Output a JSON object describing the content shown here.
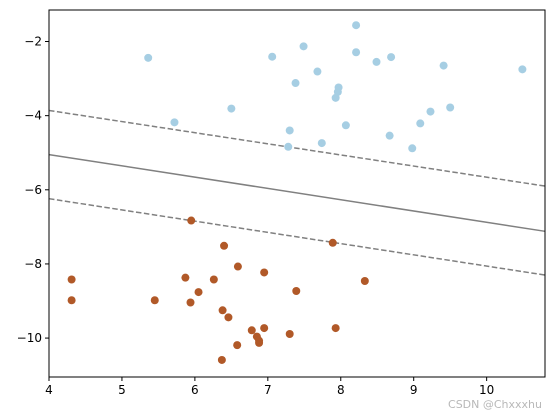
{
  "chart_data": {
    "type": "scatter",
    "title": "",
    "xlabel": "",
    "ylabel": "",
    "xlim": [
      4.0,
      10.8
    ],
    "ylim": [
      -11.05,
      -1.15
    ],
    "x_ticks": [
      4,
      5,
      6,
      7,
      8,
      9,
      10
    ],
    "y_ticks": [
      -2,
      -4,
      -6,
      -8,
      -10
    ],
    "grid": false,
    "legend": "none",
    "series": [
      {
        "color": "#a6cee3",
        "points": [
          [
            5.36,
            -2.44
          ],
          [
            7.06,
            -2.41
          ],
          [
            7.49,
            -2.13
          ],
          [
            7.68,
            -2.81
          ],
          [
            8.21,
            -1.56
          ],
          [
            8.21,
            -2.29
          ],
          [
            8.49,
            -2.55
          ],
          [
            8.69,
            -2.42
          ],
          [
            9.41,
            -2.65
          ],
          [
            10.49,
            -2.75
          ],
          [
            7.38,
            -3.12
          ],
          [
            7.97,
            -3.24
          ],
          [
            7.96,
            -3.36
          ],
          [
            7.93,
            -3.52
          ],
          [
            5.72,
            -4.18
          ],
          [
            6.5,
            -3.81
          ],
          [
            7.3,
            -4.4
          ],
          [
            7.28,
            -4.84
          ],
          [
            7.74,
            -4.74
          ],
          [
            8.07,
            -4.26
          ],
          [
            8.67,
            -4.54
          ],
          [
            9.09,
            -4.21
          ],
          [
            9.23,
            -3.89
          ],
          [
            9.5,
            -3.78
          ],
          [
            8.98,
            -4.88
          ]
        ]
      },
      {
        "color": "#b15928",
        "points": [
          [
            5.95,
            -6.83
          ],
          [
            7.89,
            -7.43
          ],
          [
            6.4,
            -7.51
          ],
          [
            6.59,
            -8.07
          ],
          [
            6.95,
            -8.23
          ],
          [
            4.31,
            -8.42
          ],
          [
            5.87,
            -8.37
          ],
          [
            6.26,
            -8.42
          ],
          [
            7.39,
            -8.73
          ],
          [
            8.33,
            -8.46
          ],
          [
            4.31,
            -8.98
          ],
          [
            5.45,
            -8.98
          ],
          [
            5.94,
            -9.04
          ],
          [
            6.05,
            -8.76
          ],
          [
            6.38,
            -9.25
          ],
          [
            6.46,
            -9.44
          ],
          [
            6.95,
            -9.73
          ],
          [
            7.93,
            -9.73
          ],
          [
            6.78,
            -9.79
          ],
          [
            6.85,
            -9.96
          ],
          [
            6.88,
            -10.07
          ],
          [
            6.88,
            -10.13
          ],
          [
            6.58,
            -10.19
          ],
          [
            7.3,
            -9.89
          ],
          [
            6.37,
            -10.59
          ]
        ]
      }
    ],
    "lines": [
      {
        "style": "solid",
        "color": "#808080",
        "x": [
          4.0,
          10.8
        ],
        "y": [
          -5.05,
          -7.12
        ]
      },
      {
        "style": "dashed",
        "color": "#808080",
        "x": [
          4.0,
          10.8
        ],
        "y": [
          -3.86,
          -5.9
        ]
      },
      {
        "style": "dashed",
        "color": "#808080",
        "x": [
          4.0,
          10.8
        ],
        "y": [
          -6.24,
          -8.3
        ]
      }
    ]
  },
  "watermark": "CSDN @Chxxxhu"
}
